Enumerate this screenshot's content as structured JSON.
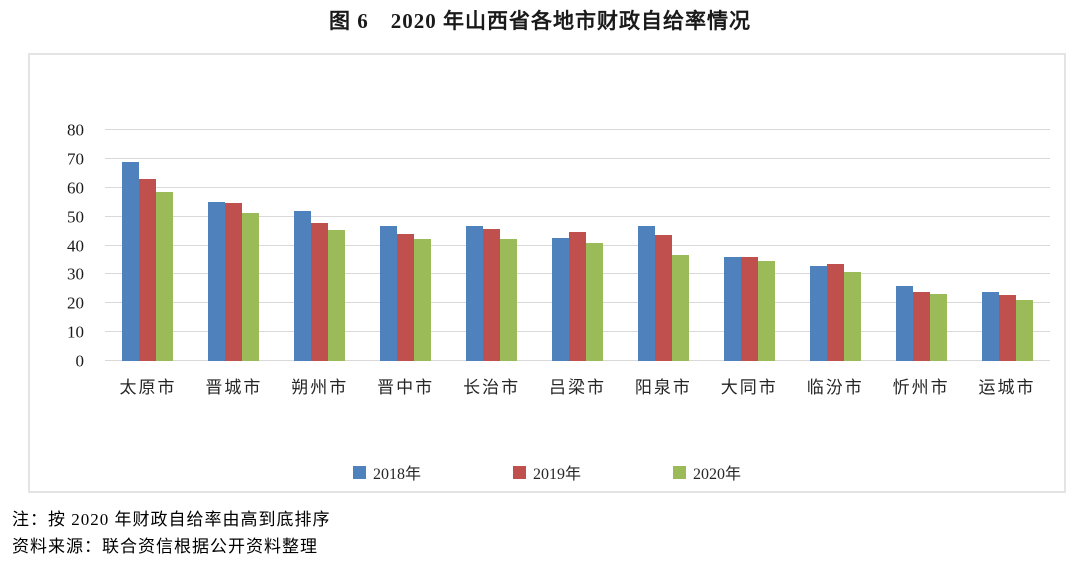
{
  "figure": {
    "title": "图 6　2020 年山西省各地市财政自给率情况",
    "note_line1": "注：按 2020 年财政自给率由高到底排序",
    "note_line2": "资料来源：联合资信根据公开资料整理"
  },
  "colors": {
    "series_2018": "#4F81BD",
    "series_2019": "#C0504D",
    "series_2020": "#9BBB59",
    "gridline": "#d9d9d9",
    "frame_border": "#e4e4e4"
  },
  "chart_data": {
    "type": "bar",
    "title": "图 6　2020 年山西省各地市财政自给率情况",
    "categories": [
      "太原市",
      "晋城市",
      "朔州市",
      "晋中市",
      "长治市",
      "吕梁市",
      "阳泉市",
      "大同市",
      "临汾市",
      "忻州市",
      "运城市"
    ],
    "series": [
      {
        "name": "2018年",
        "color": "#4F81BD",
        "values": [
          68.9,
          55.0,
          52.0,
          46.9,
          46.6,
          42.6,
          46.6,
          35.9,
          32.8,
          26.0,
          23.9
        ]
      },
      {
        "name": "2019年",
        "color": "#C0504D",
        "values": [
          63.2,
          54.8,
          47.8,
          44.1,
          45.8,
          44.7,
          43.5,
          36.1,
          33.7,
          24.0,
          22.9
        ]
      },
      {
        "name": "2020年",
        "color": "#9BBB59",
        "values": [
          58.5,
          51.1,
          45.3,
          42.3,
          42.1,
          40.7,
          36.8,
          34.7,
          30.9,
          23.2,
          21.3
        ]
      }
    ],
    "xlabel": "",
    "ylabel": "",
    "ylim": [
      0,
      80
    ],
    "ytick_step": 10,
    "yticks": [
      0,
      10,
      20,
      30,
      40,
      50,
      60,
      70,
      80
    ],
    "grid": true,
    "legend_position": "bottom"
  }
}
